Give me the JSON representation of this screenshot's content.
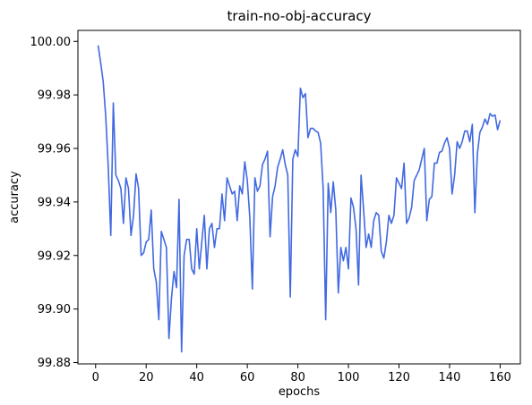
{
  "chart_data": {
    "type": "line",
    "title": "train-no-obj-accuracy",
    "xlabel": "epochs",
    "ylabel": "accuracy",
    "xlim": [
      -7,
      168
    ],
    "ylim": [
      99.8795,
      100.0041
    ],
    "x_ticks": [
      0,
      20,
      40,
      60,
      80,
      100,
      120,
      140,
      160
    ],
    "y_ticks": [
      99.88,
      99.9,
      99.92,
      99.94,
      99.96,
      99.98,
      100.0
    ],
    "y_tick_labels": [
      "99.88",
      "99.90",
      "99.92",
      "99.94",
      "99.96",
      "99.98",
      "100.00"
    ],
    "grid": false,
    "line_color": "#4169e1",
    "series": [
      {
        "name": "",
        "x": [
          1,
          2,
          3,
          4,
          5,
          6,
          7,
          8,
          9,
          10,
          11,
          12,
          13,
          14,
          15,
          16,
          17,
          18,
          19,
          20,
          21,
          22,
          23,
          24,
          25,
          26,
          27,
          28,
          29,
          30,
          31,
          32,
          33,
          34,
          35,
          36,
          37,
          38,
          39,
          40,
          41,
          42,
          43,
          44,
          45,
          46,
          47,
          48,
          49,
          50,
          51,
          52,
          53,
          54,
          55,
          56,
          57,
          58,
          59,
          60,
          61,
          62,
          63,
          64,
          65,
          66,
          67,
          68,
          69,
          70,
          71,
          72,
          73,
          74,
          75,
          76,
          77,
          78,
          79,
          80,
          81,
          82,
          83,
          84,
          85,
          86,
          87,
          88,
          89,
          90,
          91,
          92,
          93,
          94,
          95,
          96,
          97,
          98,
          99,
          100,
          101,
          102,
          103,
          104,
          105,
          106,
          107,
          108,
          109,
          110,
          111,
          112,
          113,
          114,
          115,
          116,
          117,
          118,
          119,
          120,
          121,
          122,
          123,
          124,
          125,
          126,
          127,
          128,
          129,
          130,
          131,
          132,
          133,
          134,
          135,
          136,
          137,
          138,
          139,
          140,
          141,
          142,
          143,
          144,
          145,
          146,
          147,
          148,
          149,
          150,
          151,
          152,
          153,
          154,
          155,
          156,
          157,
          158,
          159,
          160
        ],
        "values": [
          99.9985,
          99.992,
          99.985,
          99.972,
          99.953,
          99.9275,
          99.977,
          99.95,
          99.948,
          99.945,
          99.932,
          99.949,
          99.945,
          99.9275,
          99.935,
          99.9505,
          99.945,
          99.92,
          99.921,
          99.925,
          99.926,
          99.937,
          99.915,
          99.91,
          99.896,
          99.929,
          99.926,
          99.923,
          99.889,
          99.904,
          99.914,
          99.908,
          99.941,
          99.884,
          99.92,
          99.926,
          99.926,
          99.915,
          99.913,
          99.93,
          99.915,
          99.925,
          99.935,
          99.915,
          99.93,
          99.932,
          99.923,
          99.93,
          99.93,
          99.943,
          99.933,
          99.949,
          99.946,
          99.943,
          99.944,
          99.933,
          99.946,
          99.943,
          99.955,
          99.948,
          99.934,
          99.9075,
          99.949,
          99.944,
          99.946,
          99.954,
          99.956,
          99.959,
          99.927,
          99.942,
          99.946,
          99.953,
          99.956,
          99.9595,
          99.954,
          99.95,
          99.9045,
          99.956,
          99.9595,
          99.957,
          99.9825,
          99.979,
          99.9805,
          99.964,
          99.9675,
          99.9675,
          99.9665,
          99.966,
          99.962,
          99.945,
          99.896,
          99.947,
          99.936,
          99.9475,
          99.937,
          99.906,
          99.923,
          99.918,
          99.923,
          99.915,
          99.9415,
          99.938,
          99.93,
          99.909,
          99.95,
          99.937,
          99.923,
          99.928,
          99.923,
          99.933,
          99.936,
          99.935,
          99.9215,
          99.919,
          99.925,
          99.935,
          99.932,
          99.935,
          99.949,
          99.947,
          99.945,
          99.9545,
          99.932,
          99.934,
          99.938,
          99.948,
          99.95,
          99.952,
          99.956,
          99.96,
          99.933,
          99.941,
          99.942,
          99.9545,
          99.9545,
          99.9585,
          99.959,
          99.962,
          99.964,
          99.96,
          99.943,
          99.95,
          99.9625,
          99.96,
          99.9625,
          99.9665,
          99.9665,
          99.9625,
          99.969,
          99.936,
          99.958,
          99.966,
          99.968,
          99.971,
          99.969,
          99.973,
          99.972,
          99.9725,
          99.967,
          99.9705
        ]
      }
    ]
  }
}
